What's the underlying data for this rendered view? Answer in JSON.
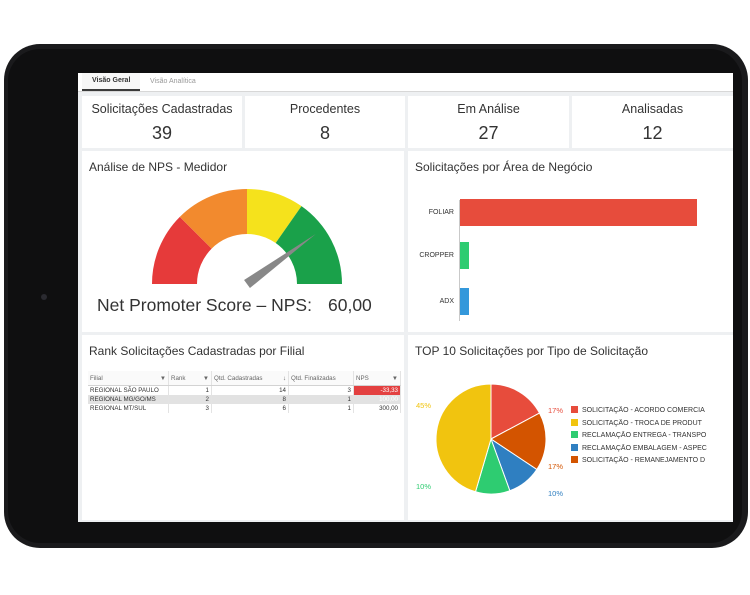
{
  "tabs": [
    {
      "label": "Visão Geral",
      "active": true
    },
    {
      "label": "Visão Analítica",
      "active": false
    }
  ],
  "kpis": [
    {
      "label": "Solicitações Cadastradas",
      "value": "39"
    },
    {
      "label": "Procedentes",
      "value": "8"
    },
    {
      "label": "Em Análise",
      "value": "27"
    },
    {
      "label": "Analisadas",
      "value": "12"
    }
  ],
  "nps_panel": {
    "title": "Análise de NPS - Medidor",
    "label": "Net Promoter Score – NPS:",
    "value": "60,00",
    "gauge_fraction": 0.8,
    "colors": [
      "#e63a3a",
      "#f28a2e",
      "#f5e21c",
      "#1aa14a"
    ]
  },
  "area_panel": {
    "title": "Solicitações por Área de Negócio"
  },
  "rank_panel": {
    "title": "Rank Solicitações Cadastradas por Filial",
    "columns": [
      "Filial",
      "Rank",
      "Qtd. Cadastradas",
      "Qtd. Finalizadas",
      "NPS"
    ],
    "rows": [
      {
        "filial": "REGIONAL SÃO PAULO",
        "rank": "1",
        "cadastradas": "14",
        "finalizadas": "3",
        "nps": "-33,33"
      },
      {
        "filial": "REGIONAL MG/GO/MS",
        "rank": "2",
        "cadastradas": "8",
        "finalizadas": "1",
        "nps": "100,00"
      },
      {
        "filial": "REGIONAL MT/SUL",
        "rank": "3",
        "cadastradas": "6",
        "finalizadas": "1",
        "nps": "300,00"
      }
    ]
  },
  "top10_panel": {
    "title": "TOP 10 Solicitações por Tipo de Solicitação",
    "legend": [
      {
        "label": "SOLICITAÇÃO - ACORDO COMERCIA",
        "color": "#e74c3c"
      },
      {
        "label": "SOLICITAÇÃO - TROCA DE PRODUT",
        "color": "#f1c40f"
      },
      {
        "label": "RECLAMAÇÃO ENTREGA - TRANSPO",
        "color": "#2ecc71"
      },
      {
        "label": "RECLAMAÇÃO EMBALAGEM - ASPEC",
        "color": "#2f7fc1"
      },
      {
        "label": "SOLICITAÇÃO - REMANEJAMENTO D",
        "color": "#d35400"
      }
    ]
  },
  "chart_data": [
    {
      "type": "bar",
      "orientation": "horizontal",
      "categories": [
        "FOLIAR",
        "CROPPER",
        "ADX"
      ],
      "values": [
        26,
        1,
        1
      ],
      "colors": [
        "#e74c3c",
        "#2ecc71",
        "#3498db"
      ],
      "grid": false
    },
    {
      "type": "pie",
      "categories": [
        "SOLICITAÇÃO - ACORDO COMERCIA",
        "SOLICITAÇÃO - TROCA DE PRODUT",
        "RECLAMAÇÃO ENTREGA - TRANSPO",
        "RECLAMAÇÃO EMBALAGEM - ASPEC",
        "SOLICITAÇÃO - REMANEJAMENTO D"
      ],
      "values": [
        17,
        45,
        10,
        10,
        17
      ],
      "labels": [
        "17%",
        "45%",
        "10%",
        "10%",
        "17%"
      ],
      "colors": [
        "#e74c3c",
        "#f1c40f",
        "#2ecc71",
        "#2f7fc1",
        "#d35400"
      ],
      "legend": "right"
    }
  ]
}
